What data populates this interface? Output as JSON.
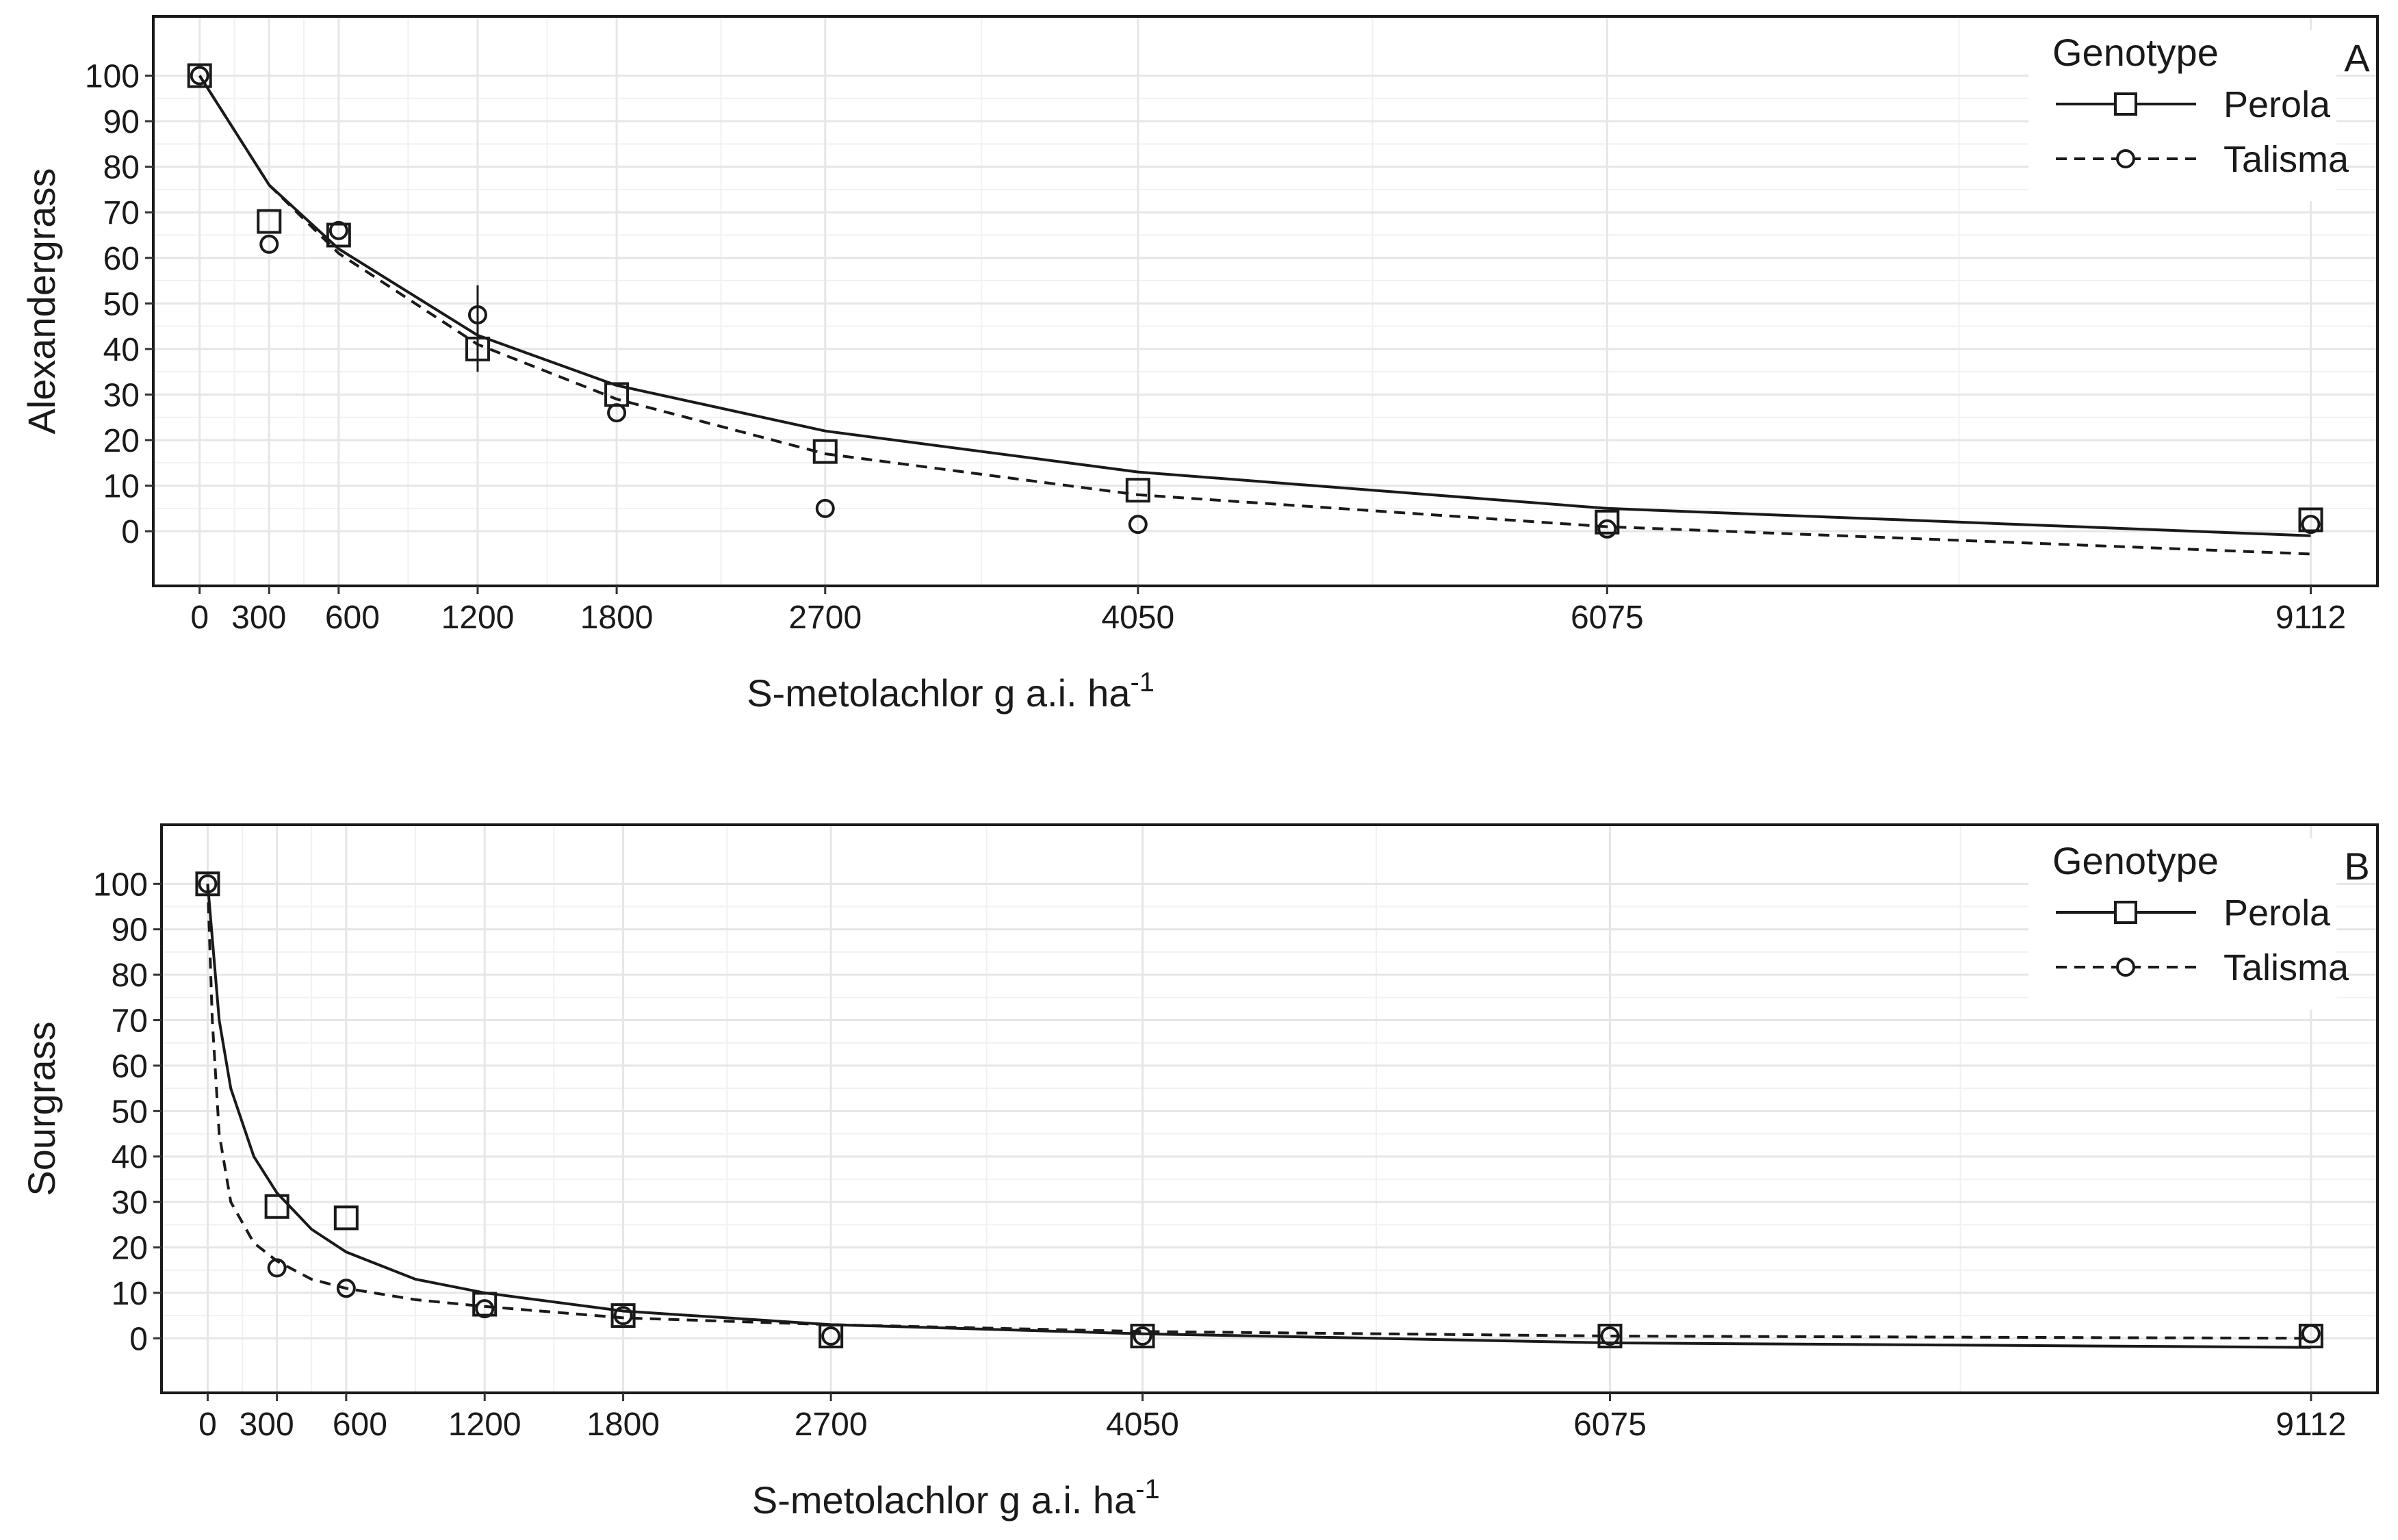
{
  "chart_data": [
    {
      "type": "line",
      "panel_label": "A",
      "ylabel": "Alexandergrass",
      "xlabel": "S-metolachlor g a.i. ha",
      "xlabel_superscript": "-1",
      "x_ticks": [
        0,
        300,
        600,
        1200,
        1800,
        2700,
        4050,
        6075,
        9112
      ],
      "y_ticks": [
        0,
        10,
        20,
        30,
        40,
        50,
        60,
        70,
        80,
        90,
        100
      ],
      "xlim": [
        -200,
        9400
      ],
      "ylim": [
        -12,
        113
      ],
      "legend": {
        "title": "Genotype",
        "position": "top-right",
        "entries": [
          "Perola",
          "Talisma"
        ]
      },
      "series": [
        {
          "name": "Perola",
          "marker": "square",
          "line": "solid",
          "points": [
            {
              "x": 0,
              "y": 100
            },
            {
              "x": 300,
              "y": 68
            },
            {
              "x": 600,
              "y": 65
            },
            {
              "x": 1200,
              "y": 40,
              "err": 5
            },
            {
              "x": 1800,
              "y": 30
            },
            {
              "x": 2700,
              "y": 17.5
            },
            {
              "x": 4050,
              "y": 9
            },
            {
              "x": 6075,
              "y": 2
            },
            {
              "x": 9112,
              "y": 2.5
            }
          ],
          "fit": [
            [
              0,
              100
            ],
            [
              300,
              76
            ],
            [
              600,
              62
            ],
            [
              1200,
              43
            ],
            [
              1800,
              32
            ],
            [
              2700,
              22
            ],
            [
              4050,
              13
            ],
            [
              6075,
              5
            ],
            [
              9112,
              -1
            ]
          ]
        },
        {
          "name": "Talisma",
          "marker": "circle",
          "line": "dashed",
          "points": [
            {
              "x": 0,
              "y": 100
            },
            {
              "x": 300,
              "y": 63
            },
            {
              "x": 600,
              "y": 66
            },
            {
              "x": 1200,
              "y": 47.5,
              "err": 6.5
            },
            {
              "x": 1800,
              "y": 26
            },
            {
              "x": 2700,
              "y": 5
            },
            {
              "x": 4050,
              "y": 1.5
            },
            {
              "x": 6075,
              "y": 0.5
            },
            {
              "x": 9112,
              "y": 1.5
            }
          ],
          "fit": [
            [
              0,
              100
            ],
            [
              300,
              76
            ],
            [
              600,
              61
            ],
            [
              1200,
              41
            ],
            [
              1800,
              29
            ],
            [
              2700,
              17
            ],
            [
              4050,
              8
            ],
            [
              6075,
              1
            ],
            [
              9112,
              -5
            ]
          ]
        }
      ]
    },
    {
      "type": "line",
      "panel_label": "B",
      "ylabel": "Sourgrass",
      "xlabel": "S-metolachlor g a.i. ha",
      "xlabel_superscript": "-1",
      "x_ticks": [
        0,
        300,
        600,
        1200,
        1800,
        2700,
        4050,
        6075,
        9112
      ],
      "y_ticks": [
        0,
        10,
        20,
        30,
        40,
        50,
        60,
        70,
        80,
        90,
        100
      ],
      "xlim": [
        -200,
        9400
      ],
      "ylim": [
        -12,
        113
      ],
      "legend": {
        "title": "Genotype",
        "position": "top-right",
        "entries": [
          "Perola",
          "Talisma"
        ]
      },
      "series": [
        {
          "name": "Perola",
          "marker": "square",
          "line": "solid",
          "points": [
            {
              "x": 0,
              "y": 100
            },
            {
              "x": 300,
              "y": 29
            },
            {
              "x": 600,
              "y": 26.5
            },
            {
              "x": 1200,
              "y": 7.5
            },
            {
              "x": 1800,
              "y": 5
            },
            {
              "x": 2700,
              "y": 0.5
            },
            {
              "x": 4050,
              "y": 0.5
            },
            {
              "x": 6075,
              "y": 0.5
            },
            {
              "x": 9112,
              "y": 0.5
            }
          ],
          "fit": [
            [
              0,
              100
            ],
            [
              50,
              70
            ],
            [
              100,
              55
            ],
            [
              200,
              40
            ],
            [
              300,
              32
            ],
            [
              450,
              24
            ],
            [
              600,
              19
            ],
            [
              900,
              13
            ],
            [
              1200,
              10
            ],
            [
              1800,
              6
            ],
            [
              2700,
              3
            ],
            [
              4050,
              1
            ],
            [
              6075,
              -1
            ],
            [
              9112,
              -2
            ]
          ]
        },
        {
          "name": "Talisma",
          "marker": "circle",
          "line": "dashed",
          "points": [
            {
              "x": 0,
              "y": 100
            },
            {
              "x": 300,
              "y": 15.5
            },
            {
              "x": 600,
              "y": 11
            },
            {
              "x": 1200,
              "y": 6.5
            },
            {
              "x": 1800,
              "y": 5
            },
            {
              "x": 2700,
              "y": 0.5
            },
            {
              "x": 4050,
              "y": 0.5
            },
            {
              "x": 6075,
              "y": 0.5
            },
            {
              "x": 9112,
              "y": 1
            }
          ],
          "fit": [
            [
              0,
              100
            ],
            [
              20,
              70
            ],
            [
              50,
              45
            ],
            [
              100,
              30
            ],
            [
              200,
              21
            ],
            [
              300,
              17
            ],
            [
              450,
              13
            ],
            [
              600,
              11
            ],
            [
              900,
              8.5
            ],
            [
              1200,
              7
            ],
            [
              1800,
              4.5
            ],
            [
              2700,
              3
            ],
            [
              4050,
              1.5
            ],
            [
              6075,
              0.5
            ],
            [
              9112,
              0
            ]
          ]
        }
      ]
    }
  ]
}
